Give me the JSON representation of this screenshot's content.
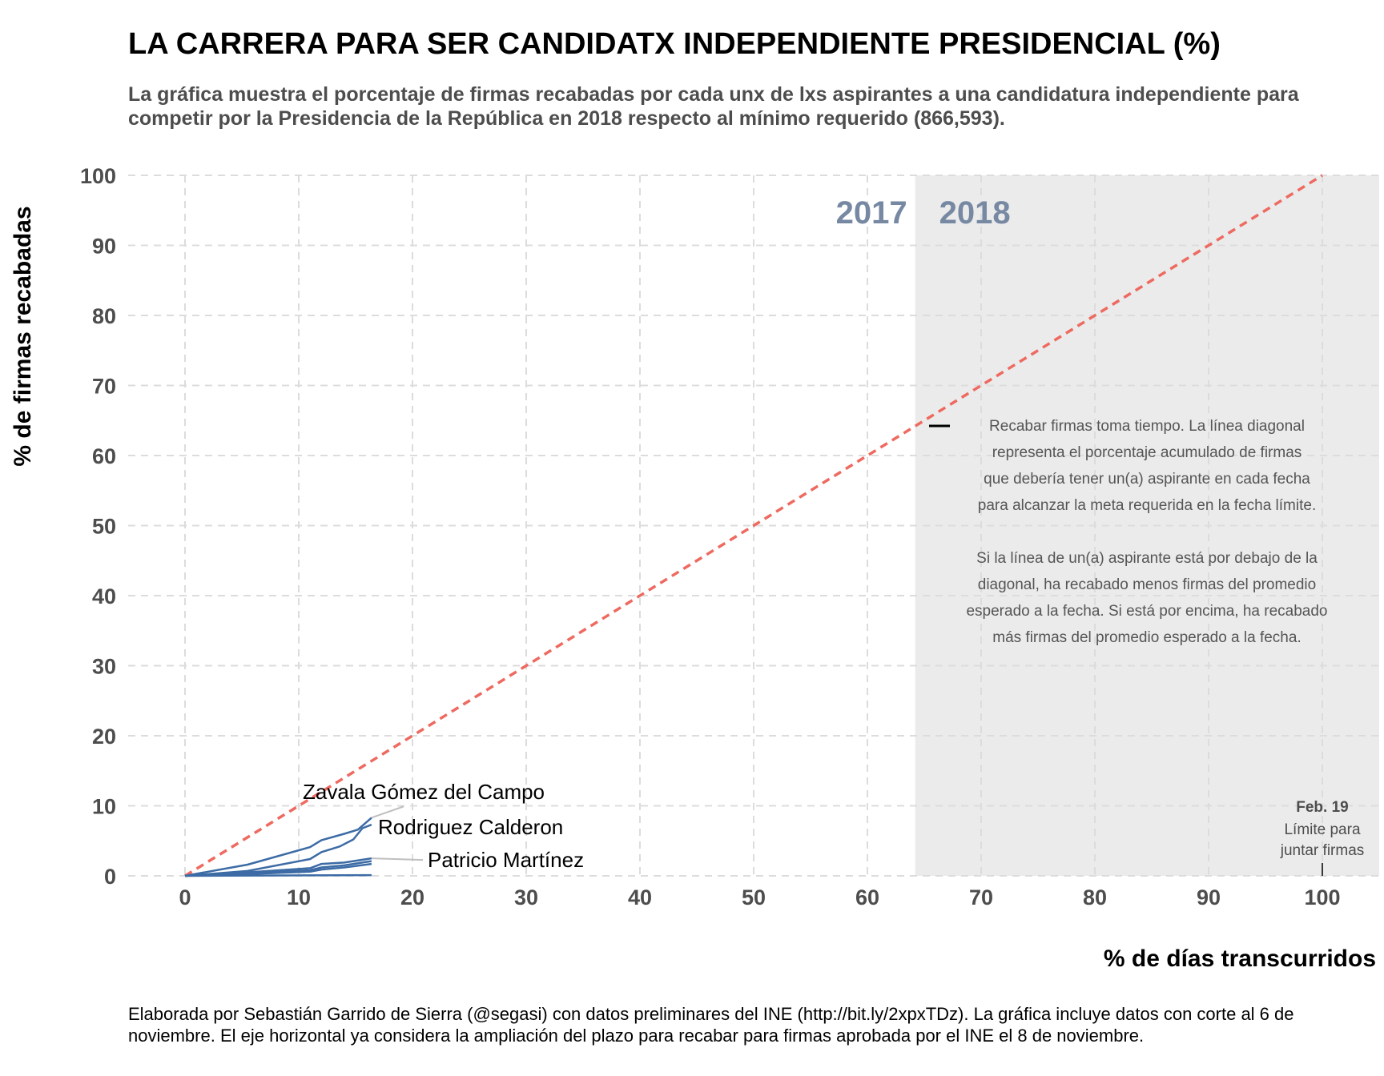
{
  "chart_data": {
    "type": "line",
    "title": "LA CARRERA PARA SER CANDIDATX INDEPENDIENTE PRESIDENCIAL (%)",
    "subtitle": "La gráfica muestra el porcentaje de firmas recabadas por cada unx de lxs aspirantes a una candidatura independiente para competir por la Presidencia de la República en 2018 respecto al mínimo requerido (866,593).",
    "xlabel": "% de días transcurridos",
    "ylabel": "% de firmas recabadas",
    "xlim": [
      -5,
      105
    ],
    "ylim": [
      0,
      100
    ],
    "x_ticks": [
      0,
      10,
      20,
      30,
      40,
      50,
      60,
      70,
      80,
      90,
      100
    ],
    "y_ticks": [
      0,
      10,
      20,
      30,
      40,
      50,
      60,
      70,
      80,
      90,
      100
    ],
    "grid": true,
    "line_color": "#3c6ba5",
    "reference_color": "#ee6a60",
    "shade_color": "#ebebeb",
    "reference_line": {
      "from": [
        0,
        0
      ],
      "to": [
        100,
        100
      ],
      "style": "dashed"
    },
    "shaded_region": {
      "x_start": 64.2,
      "x_end": 105,
      "label_left": "2017",
      "label_right": "2018"
    },
    "series": [
      {
        "name": "Zavala Gómez del Campo",
        "x": [
          0,
          5.5,
          11,
          12,
          14,
          15.2,
          16.4
        ],
        "y": [
          0,
          1.6,
          4.1,
          5.1,
          6,
          6.6,
          8.3
        ]
      },
      {
        "name": "Rodriguez Calderon",
        "x": [
          0,
          5.5,
          11,
          12,
          13.6,
          14.8,
          15.6,
          16.4
        ],
        "y": [
          0,
          0.7,
          2.4,
          3.4,
          4.2,
          5.2,
          6.8,
          7.3
        ]
      },
      {
        "name": "Patricio Martínez",
        "x": [
          0,
          5.5,
          11,
          12,
          14,
          16.4
        ],
        "y": [
          0,
          0.5,
          1.1,
          1.7,
          1.9,
          2.5
        ]
      },
      {
        "name": "",
        "x": [
          0,
          5.5,
          11,
          12,
          14,
          16.4
        ],
        "y": [
          0,
          0.35,
          0.8,
          1.2,
          1.5,
          2.1
        ]
      },
      {
        "name": "",
        "x": [
          0,
          5.5,
          11,
          12,
          14,
          16.4
        ],
        "y": [
          0,
          0.25,
          0.6,
          0.9,
          1.2,
          1.7
        ]
      },
      {
        "name": "",
        "x": [
          0,
          16.4
        ],
        "y": [
          0,
          0.1
        ]
      }
    ],
    "annotations": {
      "note_lines": [
        "Recabar firmas toma tiempo. La línea diagonal",
        "representa el porcentaje acumulado de firmas",
        "que debería tener un(a) aspirante en cada fecha",
        "para alcanzar la meta requerida en la fecha límite.",
        "",
        "Si la línea de un(a) aspirante está por debajo de la",
        "diagonal, ha recabado menos firmas del promedio",
        "esperado a la fecha. Si está por encima, ha recabado",
        "más firmas del promedio esperado a la fecha."
      ],
      "deadline_date": "Feb. 19",
      "deadline_lines": [
        "Límite para",
        "juntar firmas"
      ],
      "deadline_x": 100
    }
  },
  "caption": "Elaborada por Sebastián Garrido de Sierra (@segasi) con datos preliminares del INE (http://bit.ly/2xpxTDz). La gráfica incluye datos con corte al 6 de noviembre. El eje horizontal ya considera la ampliación del plazo para recabar para firmas aprobada por el INE el 8 de noviembre."
}
